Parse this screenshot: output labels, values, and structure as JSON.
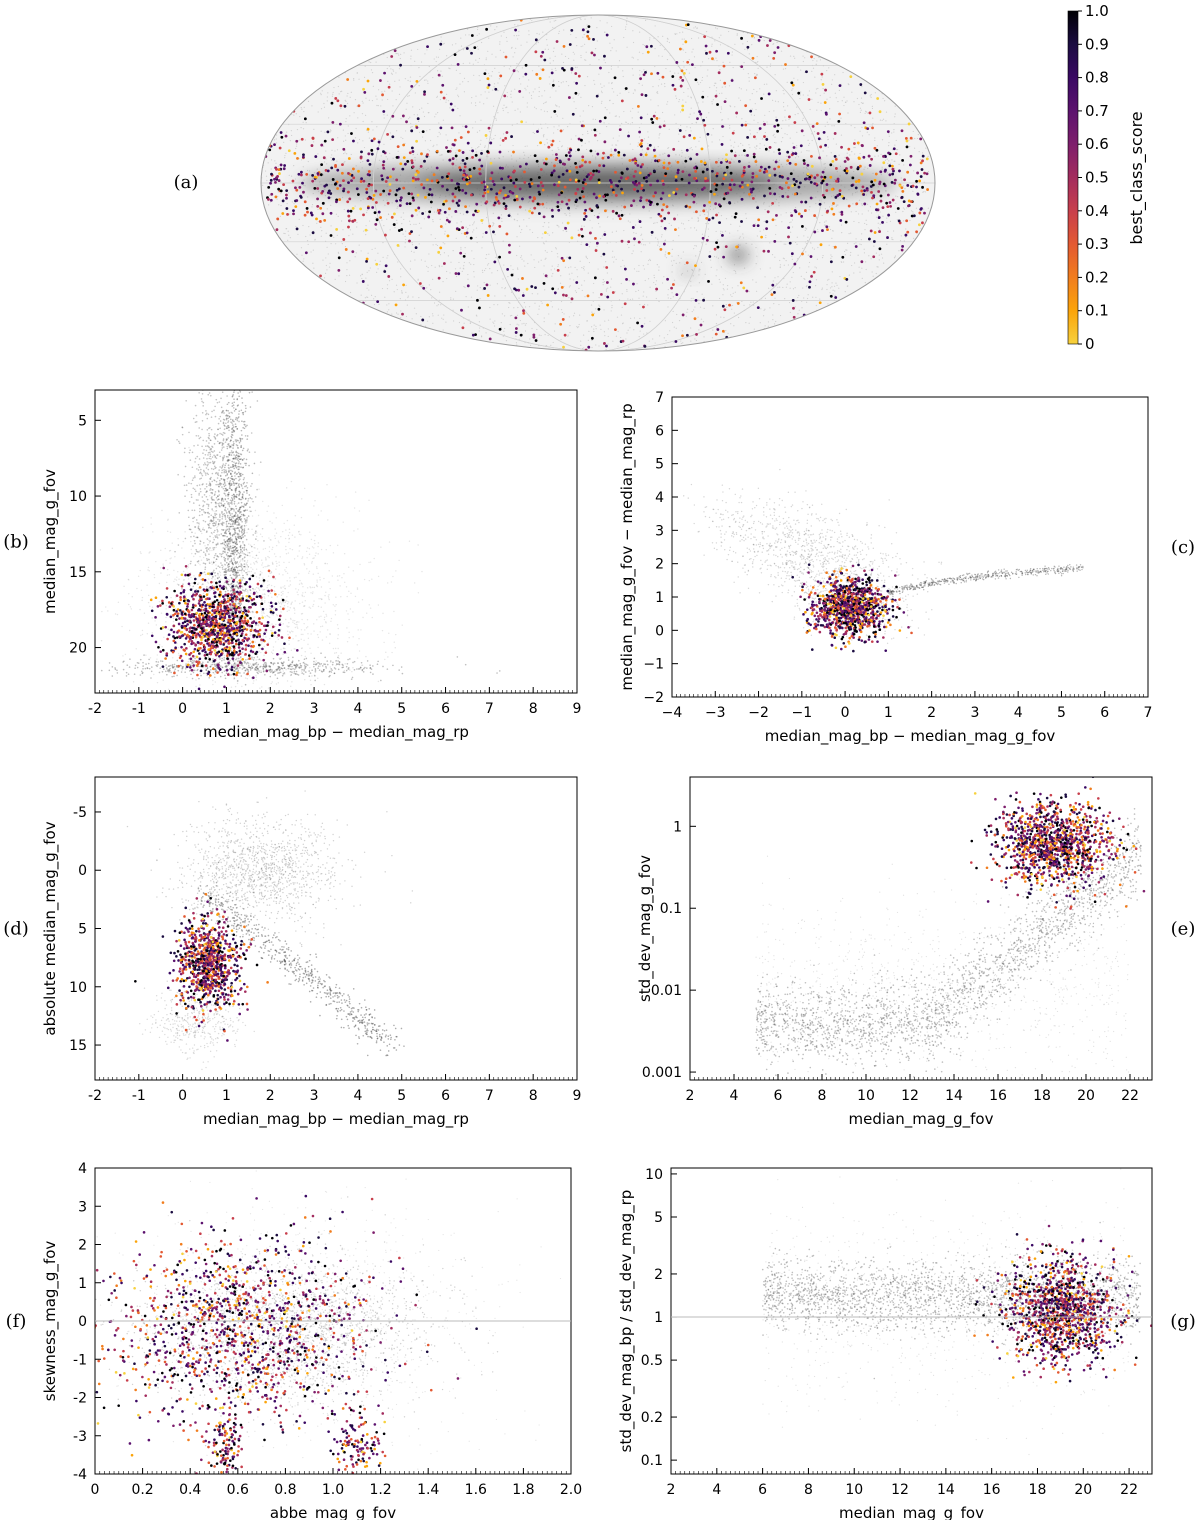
{
  "colorbar": {
    "label": "best_class_score",
    "ticks": [
      "0",
      "0.1",
      "0.2",
      "0.3",
      "0.4",
      "0.5",
      "0.6",
      "0.7",
      "0.8",
      "0.9",
      "1.0"
    ],
    "tick_values": [
      0,
      0.1,
      0.2,
      0.3,
      0.4,
      0.5,
      0.6,
      0.7,
      0.8,
      0.9,
      1.0
    ],
    "colors": [
      "#f7d13d",
      "#fba40a",
      "#f17d1e",
      "#e35932",
      "#c83f4c",
      "#a32c5e",
      "#7e1e6c",
      "#5c126e",
      "#3a0963",
      "#1b0c41",
      "#000004"
    ]
  },
  "chart_data": [
    {
      "panel": "(a)",
      "type": "scatter",
      "projection": "mollweide (all-sky)",
      "title": "",
      "xlabel": "",
      "ylabel": "",
      "description_series": [
        "background sources (grey density)",
        "selected sources colored by best_class_score"
      ]
    },
    {
      "panel": "(b)",
      "type": "scatter",
      "xlabel": "median_mag_bp − median_mag_rp",
      "ylabel": "median_mag_g_fov",
      "xlim": [
        -2,
        9
      ],
      "ylim": [
        23,
        3
      ],
      "y_inverted": true,
      "xticks": [
        "-2",
        "-1",
        "0",
        "1",
        "2",
        "3",
        "4",
        "5",
        "6",
        "7",
        "8",
        "9"
      ],
      "xtick_values": [
        -2,
        -1,
        0,
        1,
        2,
        3,
        4,
        5,
        6,
        7,
        8,
        9
      ],
      "yticks": [
        "5",
        "10",
        "15",
        "20"
      ],
      "ytick_values": [
        5,
        10,
        15,
        20
      ],
      "scale": "linear"
    },
    {
      "panel": "(c)",
      "type": "scatter",
      "xlabel": "median_mag_bp − median_mag_g_fov",
      "ylabel": "median_mag_g_fov − median_mag_rp",
      "xlim": [
        -4,
        7
      ],
      "ylim": [
        -2,
        7
      ],
      "xticks": [
        "−4",
        "−3",
        "−2",
        "−1",
        "0",
        "1",
        "2",
        "3",
        "4",
        "5",
        "6",
        "7"
      ],
      "xtick_values": [
        -4,
        -3,
        -2,
        -1,
        0,
        1,
        2,
        3,
        4,
        5,
        6,
        7
      ],
      "yticks": [
        "−2",
        "−1",
        "0",
        "1",
        "2",
        "3",
        "4",
        "5",
        "6",
        "7"
      ],
      "ytick_values": [
        -2,
        -1,
        0,
        1,
        2,
        3,
        4,
        5,
        6,
        7
      ],
      "scale": "linear"
    },
    {
      "panel": "(d)",
      "type": "scatter",
      "xlabel": "median_mag_bp − median_mag_rp",
      "ylabel": "absolute median_mag_g_fov",
      "xlim": [
        -2,
        9
      ],
      "ylim": [
        18,
        -8
      ],
      "y_inverted": true,
      "xticks": [
        "-2",
        "-1",
        "0",
        "1",
        "2",
        "3",
        "4",
        "5",
        "6",
        "7",
        "8",
        "9"
      ],
      "xtick_values": [
        -2,
        -1,
        0,
        1,
        2,
        3,
        4,
        5,
        6,
        7,
        8,
        9
      ],
      "yticks": [
        "-5",
        "0",
        "5",
        "10",
        "15"
      ],
      "ytick_values": [
        -5,
        0,
        5,
        10,
        15
      ],
      "scale": "linear"
    },
    {
      "panel": "(e)",
      "type": "scatter",
      "xlabel": "median_mag_g_fov",
      "ylabel": "std_dev_mag_g_fov",
      "xlim": [
        2,
        23
      ],
      "ylim": [
        0.0008,
        4
      ],
      "xticks": [
        "2",
        "4",
        "6",
        "8",
        "10",
        "12",
        "14",
        "16",
        "18",
        "20",
        "22"
      ],
      "xtick_values": [
        2,
        4,
        6,
        8,
        10,
        12,
        14,
        16,
        18,
        20,
        22
      ],
      "yticks": [
        "0.001",
        "0.01",
        "0.1",
        "1"
      ],
      "ytick_values": [
        0.001,
        0.01,
        0.1,
        1
      ],
      "scale": "log-y",
      "median_curve": {
        "x": [
          6,
          7,
          8,
          9,
          10,
          10.5,
          11,
          11.5,
          12,
          12.5,
          13,
          14,
          15,
          16,
          17,
          18,
          19,
          20,
          20.6,
          21,
          21.3,
          21.8,
          22.3,
          23
        ],
        "y": [
          0.008,
          0.0075,
          0.0068,
          0.006,
          0.0055,
          0.005,
          0.0055,
          0.007,
          0.0052,
          0.0048,
          0.005,
          0.0048,
          0.0055,
          0.007,
          0.01,
          0.016,
          0.028,
          0.05,
          0.09,
          0.2,
          0.45,
          0.62,
          0.72,
          0.72
        ]
      }
    },
    {
      "panel": "(f)",
      "type": "scatter",
      "xlabel": "abbe_mag_g_fov",
      "ylabel": "skewness_mag_g_fov",
      "xlim": [
        0,
        2
      ],
      "ylim": [
        -4,
        4
      ],
      "xticks": [
        "0",
        "0.2",
        "0.4",
        "0.6",
        "0.8",
        "1.0",
        "1.2",
        "1.4",
        "1.6",
        "1.8",
        "2.0"
      ],
      "xtick_values": [
        0,
        0.2,
        0.4,
        0.6,
        0.8,
        1.0,
        1.2,
        1.4,
        1.6,
        1.8,
        2.0
      ],
      "yticks": [
        "-4",
        "-3",
        "-2",
        "-1",
        "0",
        "1",
        "2",
        "3",
        "4"
      ],
      "ytick_values": [
        -4,
        -3,
        -2,
        -1,
        0,
        1,
        2,
        3,
        4
      ],
      "hline": 0,
      "scale": "linear"
    },
    {
      "panel": "(g)",
      "type": "scatter",
      "xlabel": "median_mag_g_fov",
      "ylabel": "std_dev_mag_bp / std_dev_mag_rp",
      "xlim": [
        2,
        23
      ],
      "ylim": [
        0.08,
        11
      ],
      "xticks": [
        "2",
        "4",
        "6",
        "8",
        "10",
        "12",
        "14",
        "16",
        "18",
        "20",
        "22"
      ],
      "xtick_values": [
        2,
        4,
        6,
        8,
        10,
        12,
        14,
        16,
        18,
        20,
        22
      ],
      "yticks": [
        "0.1",
        "0.2",
        "0.5",
        "1",
        "2",
        "5",
        "10"
      ],
      "ytick_values": [
        0.1,
        0.2,
        0.5,
        1,
        2,
        5,
        10
      ],
      "hline": 1,
      "scale": "log-y"
    }
  ]
}
